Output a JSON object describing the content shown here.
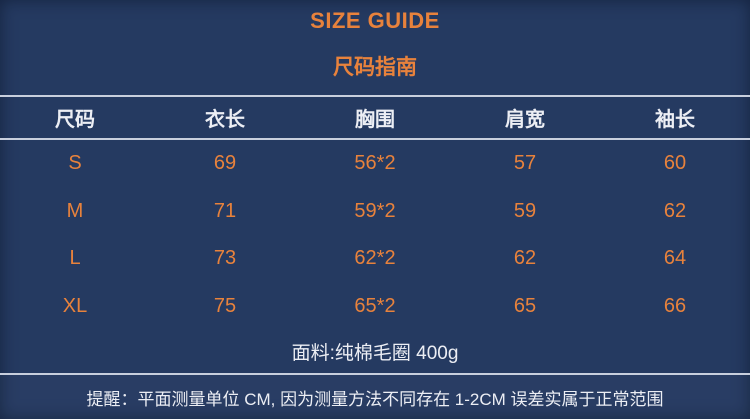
{
  "titles": {
    "en": "SIZE GUIDE",
    "zh": "尺码指南"
  },
  "table": {
    "headers": [
      "尺码",
      "衣长",
      "胸围",
      "肩宽",
      "袖长"
    ],
    "rows": [
      [
        "S",
        "69",
        "56*2",
        "57",
        "60"
      ],
      [
        "M",
        "71",
        "59*2",
        "59",
        "62"
      ],
      [
        "L",
        "73",
        "62*2",
        "62",
        "64"
      ],
      [
        "XL",
        "75",
        "65*2",
        "65",
        "66"
      ]
    ]
  },
  "fabric_note": "面料:纯棉毛圈 400g",
  "reminder": "提醒：平面测量单位 CM, 因为测量方法不同存在 1-2CM 误差实属于正常范围",
  "colors": {
    "background": "#253a61",
    "accent_orange": "#e8823c",
    "text_white": "#eceef4",
    "divider": "#c8cfdd"
  }
}
